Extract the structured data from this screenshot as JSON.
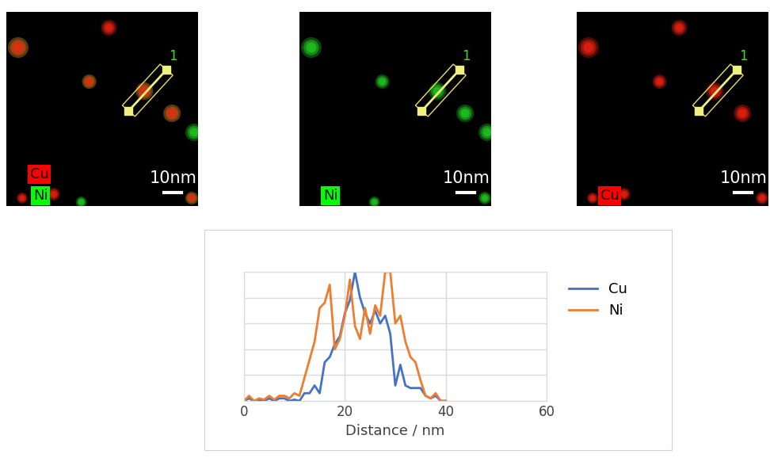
{
  "panels": [
    {
      "labels": [
        {
          "text": "Cu",
          "color": "#ff0000"
        },
        {
          "text": "Ni",
          "color": "#00ff00"
        }
      ],
      "scale_bar": "10nm",
      "line_label": "1"
    },
    {
      "labels": [
        {
          "text": "Ni",
          "color": "#00ff00"
        }
      ],
      "scale_bar": "10nm",
      "line_label": "1"
    },
    {
      "labels": [
        {
          "text": "Cu",
          "color": "#ff0000"
        }
      ],
      "scale_bar": "10nm",
      "line_label": "1"
    }
  ],
  "chart_data": {
    "type": "line",
    "x": [
      0,
      1,
      2,
      3,
      4,
      5,
      6,
      7,
      8,
      9,
      10,
      11,
      12,
      13,
      14,
      15,
      16,
      17,
      18,
      19,
      20,
      21,
      22,
      23,
      24,
      25,
      26,
      27,
      28,
      29,
      30,
      31,
      32,
      33,
      34,
      35,
      36,
      37,
      38,
      39,
      40
    ],
    "series": [
      {
        "name": "Cu",
        "color": "#4472c4",
        "values": [
          0,
          0.1,
          0,
          0.05,
          0,
          0.1,
          0,
          0.1,
          0.1,
          0,
          0.05,
          0,
          0.3,
          0.3,
          0.6,
          0.3,
          1.5,
          1.7,
          2.2,
          2.5,
          3.4,
          3.9,
          5.0,
          4.0,
          3.4,
          3.0,
          3.5,
          3.0,
          3.3,
          2.6,
          0.6,
          1.4,
          0.6,
          0.5,
          0.5,
          0.5,
          0.2,
          0.1,
          0.2,
          0,
          0
        ]
      },
      {
        "name": "Ni",
        "color": "#ed7d31",
        "values": [
          0,
          0.2,
          0,
          0.1,
          0.05,
          0.2,
          0.05,
          0.2,
          0.2,
          0.1,
          0.3,
          0.2,
          0.9,
          1.6,
          2.3,
          3.6,
          3.8,
          4.5,
          2.0,
          2.4,
          3.3,
          4.7,
          2.9,
          2.4,
          3.6,
          2.6,
          3.7,
          3.3,
          5.0,
          5.0,
          3.0,
          3.3,
          2.3,
          1.7,
          1.5,
          0.8,
          0.2,
          0.1,
          0.3,
          0,
          0
        ]
      }
    ],
    "x_label": "Distance / nm",
    "xlim": [
      0,
      60
    ],
    "xticks": [
      0,
      20,
      40,
      60
    ],
    "ylim": [
      0,
      5
    ],
    "yticks": [
      0,
      1,
      2,
      3,
      4,
      5
    ],
    "grid": true,
    "legend": "right",
    "tick_labels": "x"
  }
}
